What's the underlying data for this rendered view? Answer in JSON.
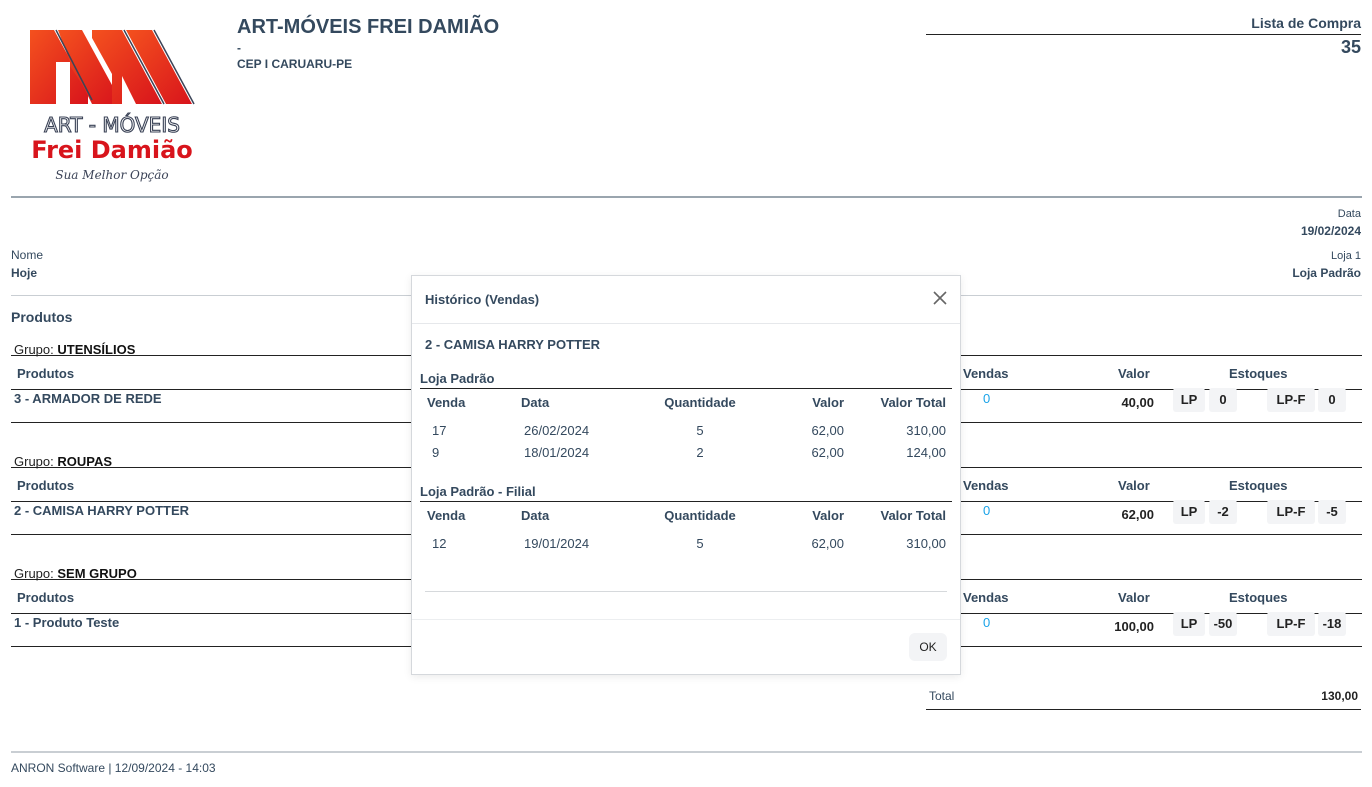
{
  "logo": {
    "text_line1": "ART - MÓVEIS",
    "text_line2": "Frei Damião",
    "tagline": "Sua Melhor Opção",
    "colors": {
      "red": "#e0231b",
      "slate": "#3b4357"
    }
  },
  "header": {
    "company": "ART-MÓVEIS FREI DAMIÃO",
    "line2": "-",
    "line3": "CEP I CARUARU-PE",
    "doc_type": "Lista de Compra",
    "doc_number": "35"
  },
  "info": {
    "date_label": "Data",
    "date_value": "19/02/2024",
    "name_label": "Nome",
    "name_value": "Hoje",
    "store_label": "Loja 1",
    "store_value": "Loja Padrão"
  },
  "products_title": "Produtos",
  "table_headers": {
    "product": "Produtos",
    "sales": "Vendas",
    "value": "Valor",
    "stock": "Estoques"
  },
  "group_prefix": "Grupo:",
  "groups": [
    {
      "name": "UTENSÍLIOS",
      "product": "3 - ARMADOR DE REDE",
      "sales": "0",
      "value": "40,00",
      "stocks": [
        {
          "store": "LP",
          "qty": "0"
        },
        {
          "store": "LP-F",
          "qty": "0"
        }
      ]
    },
    {
      "name": "ROUPAS",
      "product": "2 - CAMISA HARRY POTTER",
      "sales": "0",
      "value": "62,00",
      "stocks": [
        {
          "store": "LP",
          "qty": "-2"
        },
        {
          "store": "LP-F",
          "qty": "-5"
        }
      ]
    },
    {
      "name": "SEM GRUPO",
      "product": "1 - Produto Teste",
      "sales": "0",
      "value": "100,00",
      "stocks": [
        {
          "store": "LP",
          "qty": "-50"
        },
        {
          "store": "LP-F",
          "qty": "-18"
        }
      ]
    }
  ],
  "total": {
    "label": "Total",
    "value": "130,00"
  },
  "footer": "ANRON Software | 12/09/2024 - 14:03",
  "colors": {
    "text": "#34495e",
    "link": "#1aa3e8"
  },
  "modal": {
    "title": "Histórico (Vendas)",
    "close_icon": "close-icon",
    "product": "2 - CAMISA HARRY POTTER",
    "columns": [
      "Venda",
      "Data",
      "Quantidade",
      "Valor",
      "Valor Total"
    ],
    "sections": [
      {
        "store": "Loja Padrão",
        "rows": [
          [
            "17",
            "26/02/2024",
            "5",
            "62,00",
            "310,00"
          ],
          [
            "9",
            "18/01/2024",
            "2",
            "62,00",
            "124,00"
          ]
        ]
      },
      {
        "store": "Loja Padrão - Filial",
        "rows": [
          [
            "12",
            "19/01/2024",
            "5",
            "62,00",
            "310,00"
          ]
        ]
      }
    ],
    "ok_label": "OK"
  }
}
